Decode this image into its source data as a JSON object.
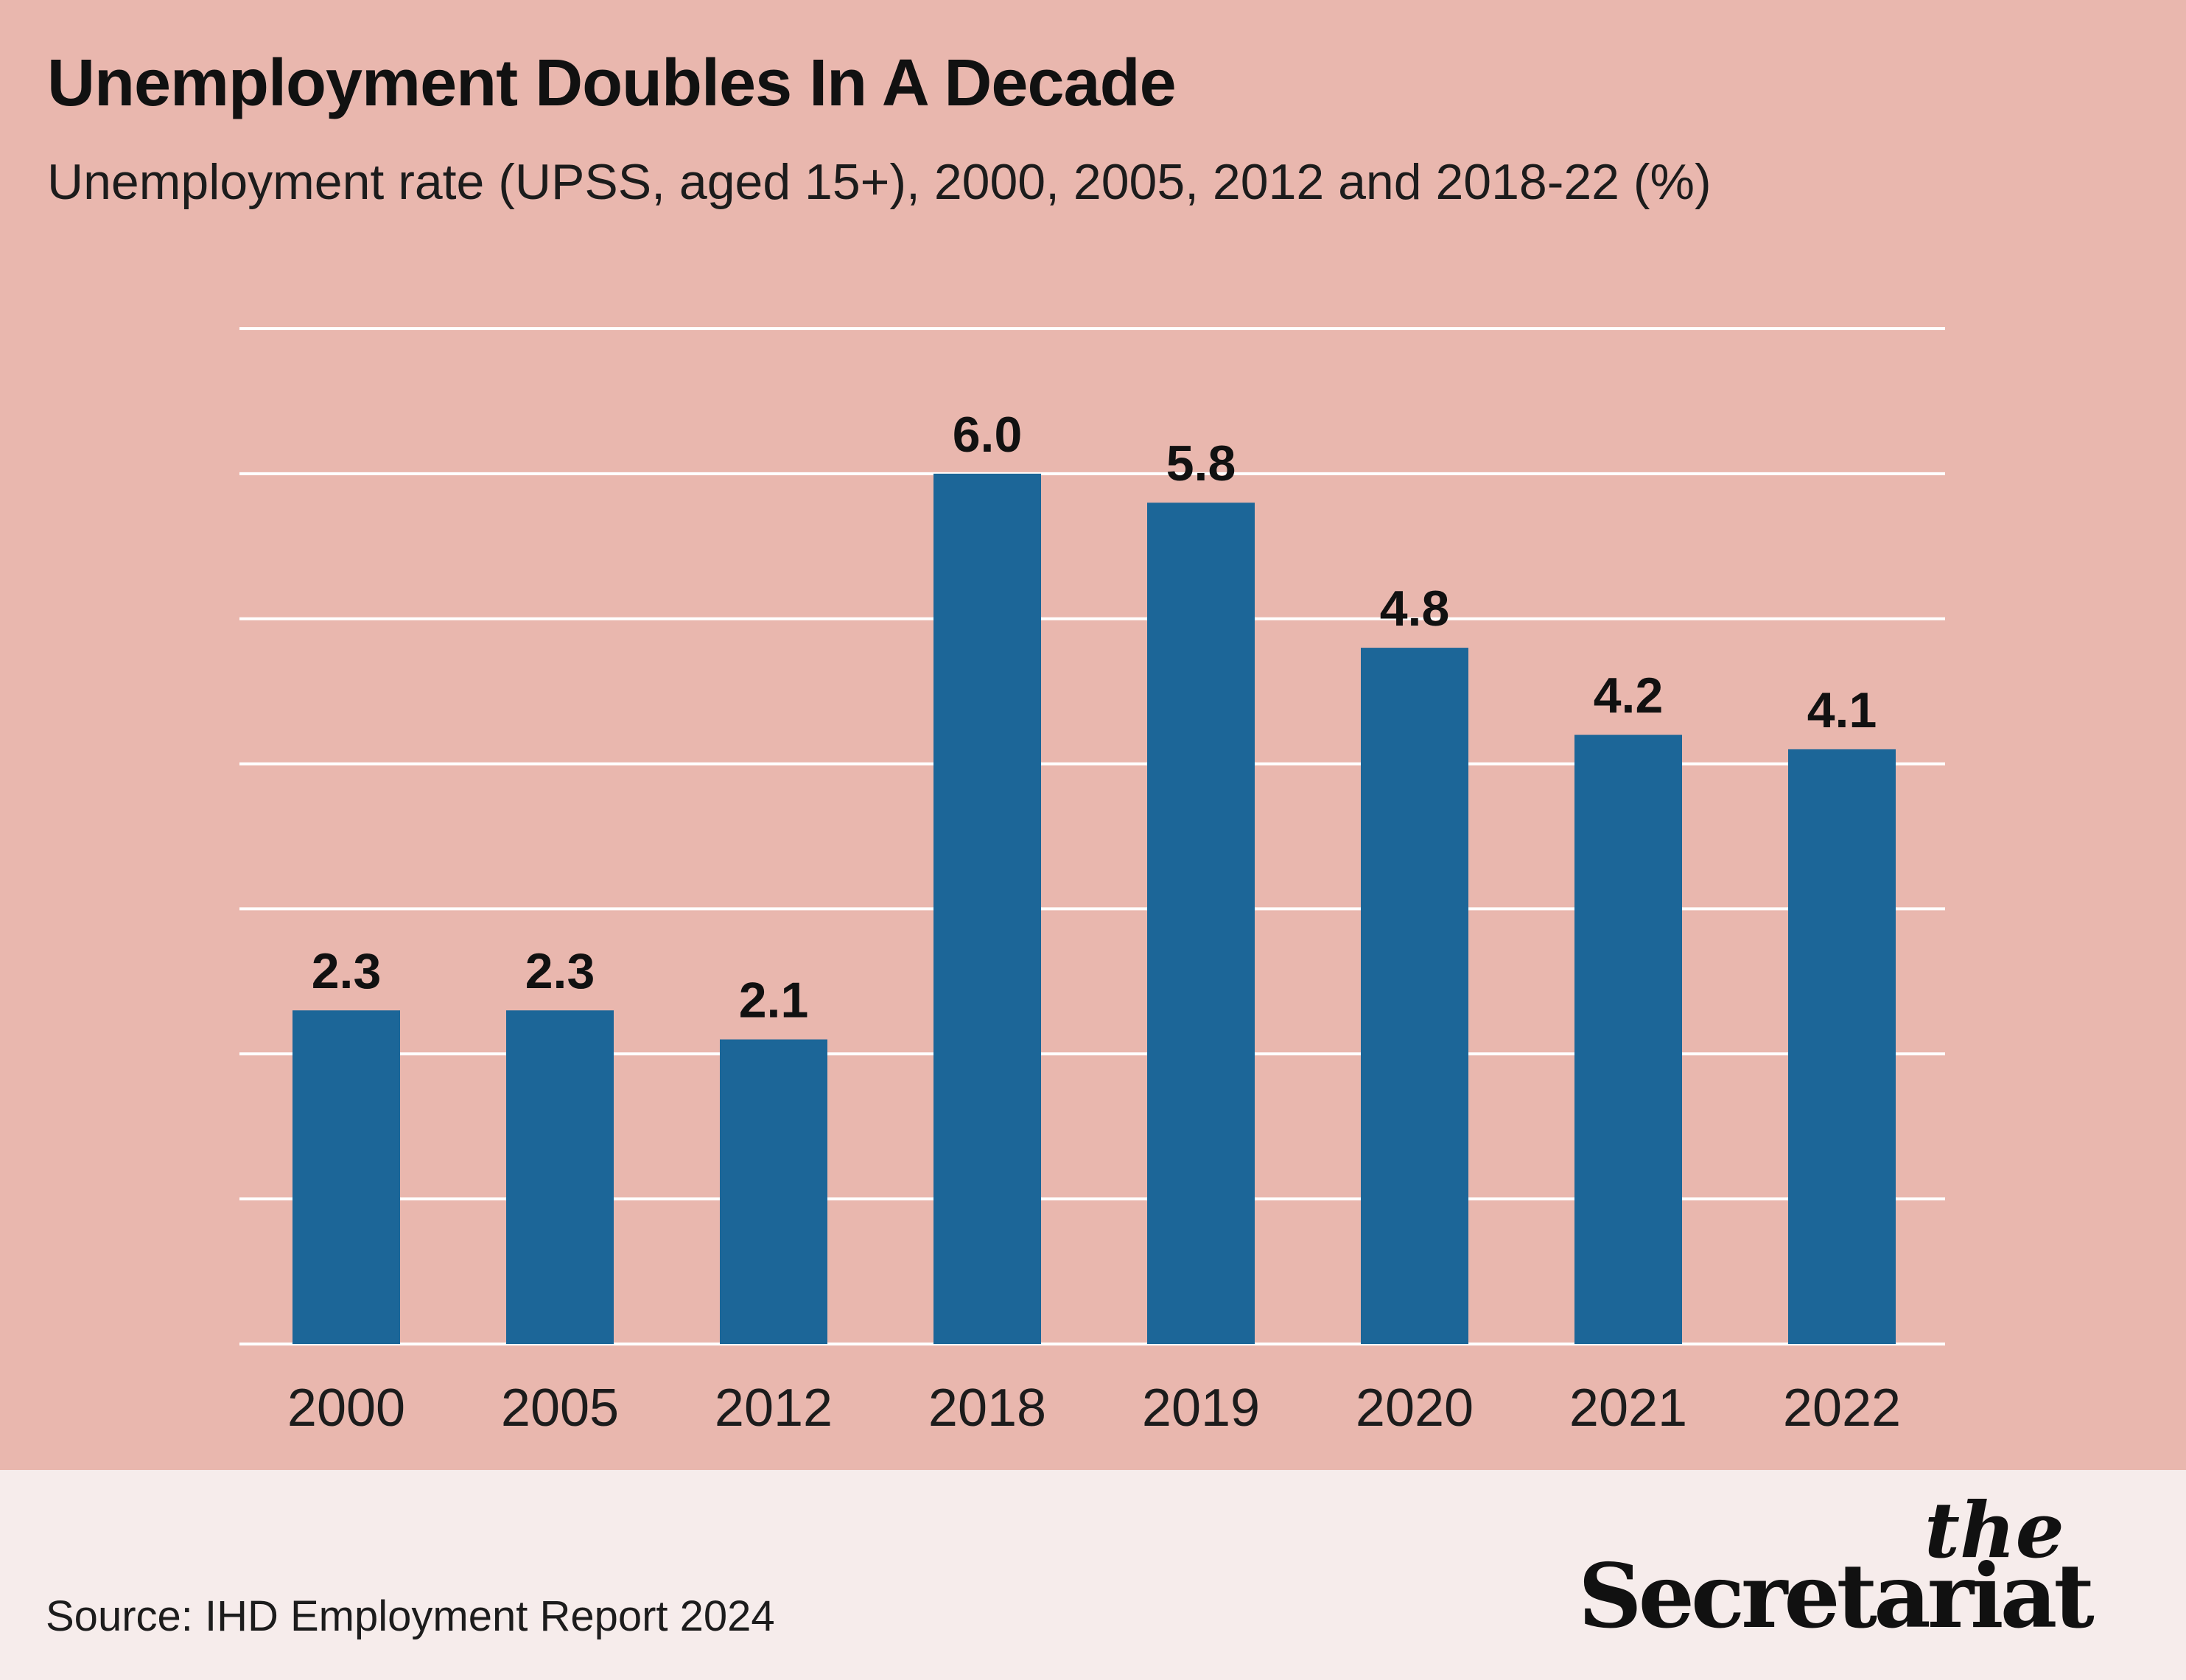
{
  "header": {
    "title": "Unemployment Doubles In A Decade",
    "subtitle": "Unemployment rate (UPSS, aged 15+), 2000, 2005, 2012 and 2018-22 (%)"
  },
  "chart_data": {
    "type": "bar",
    "categories": [
      "2000",
      "2005",
      "2012",
      "2018",
      "2019",
      "2020",
      "2021",
      "2022"
    ],
    "values": [
      2.3,
      2.3,
      2.1,
      6.0,
      5.8,
      4.8,
      4.2,
      4.1
    ],
    "data_labels": [
      "2.3",
      "2.3",
      "2.1",
      "6.0",
      "5.8",
      "4.8",
      "4.2",
      "4.1"
    ],
    "ylim": [
      0,
      7
    ],
    "gridlines": [
      0,
      1,
      2,
      3,
      4,
      5,
      6,
      7
    ],
    "grid": true,
    "bar_color": "#1c6698",
    "grid_color": "#ffffff"
  },
  "footer": {
    "source": "Source: IHD Employment Report 2024",
    "brand_the": "the",
    "brand_name": "Secretariat"
  }
}
